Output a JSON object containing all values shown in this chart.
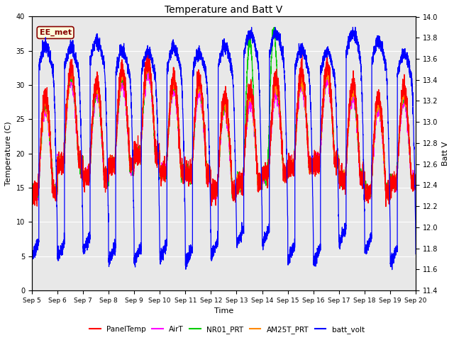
{
  "title": "Temperature and Batt V",
  "xlabel": "Time",
  "ylabel_left": "Temperature (C)",
  "ylabel_right": "Batt V",
  "ylim_left": [
    0,
    40
  ],
  "ylim_right": [
    11.4,
    14.0
  ],
  "xlim": [
    0,
    15
  ],
  "xtick_labels": [
    "Sep 5",
    "Sep 6",
    "Sep 7",
    "Sep 8",
    "Sep 9",
    "Sep 10",
    "Sep 11",
    "Sep 12",
    "Sep 13",
    "Sep 14",
    "Sep 15",
    "Sep 16",
    "Sep 17",
    "Sep 18",
    "Sep 19",
    "Sep 20"
  ],
  "annotation_text": "EE_met",
  "bg_color": "#e8e8e8",
  "fig_bg": "#ffffff",
  "line_colors": {
    "PanelTemp": "#ff0000",
    "AirT": "#ff00ff",
    "NR01_PRT": "#00cc00",
    "AM25T_PRT": "#ff8800",
    "batt_volt": "#0000ff"
  },
  "legend_labels": [
    "PanelTemp",
    "AirT",
    "NR01_PRT",
    "AM25T_PRT",
    "batt_volt"
  ],
  "yticks_left": [
    0,
    5,
    10,
    15,
    20,
    25,
    30,
    35,
    40
  ],
  "yticks_right": [
    11.4,
    11.6,
    11.8,
    12.0,
    12.2,
    12.4,
    12.6,
    12.8,
    13.0,
    13.2,
    13.4,
    13.6,
    13.8,
    14.0
  ]
}
